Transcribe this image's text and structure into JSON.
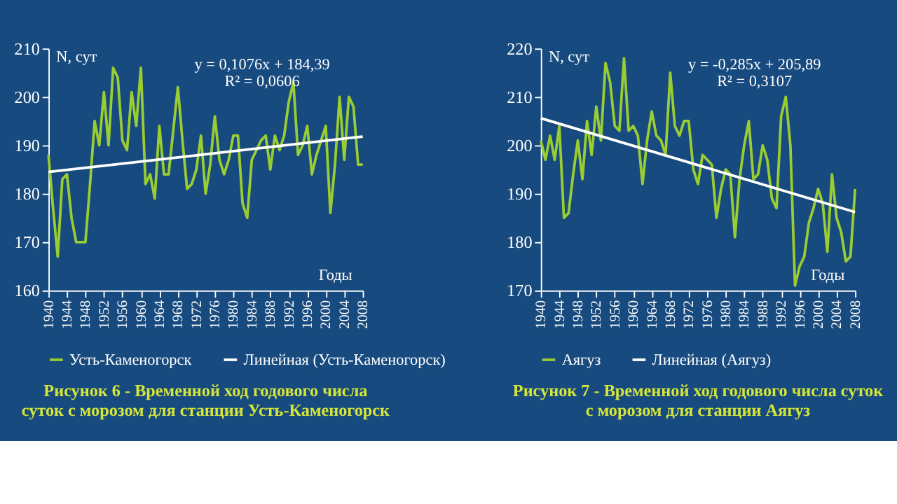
{
  "chart_data": [
    {
      "type": "line",
      "title": "Рисунок 6 -   Временной ход годового числа суток с морозом для станции Усть-Каменогорск",
      "xlabel": "Годы",
      "ylabel": "N, сут",
      "annotations": [
        "y = 0,1076x + 184,39",
        "R² = 0,0606"
      ],
      "xlim": [
        1940,
        2008
      ],
      "xticks": [
        1940,
        1944,
        1948,
        1952,
        1956,
        1960,
        1964,
        1968,
        1972,
        1976,
        1980,
        1984,
        1988,
        1992,
        1996,
        2000,
        2004,
        2008
      ],
      "ylim": [
        160,
        210
      ],
      "yticks": [
        160,
        170,
        180,
        190,
        200,
        210
      ],
      "grid": false,
      "legend": "bottom",
      "marker": "none",
      "series": [
        {
          "name": "Усть-Каменогорск",
          "color": "#9acd32",
          "x": [
            1940,
            1941,
            1942,
            1943,
            1944,
            1945,
            1946,
            1947,
            1948,
            1949,
            1950,
            1951,
            1952,
            1953,
            1954,
            1955,
            1956,
            1957,
            1958,
            1959,
            1960,
            1961,
            1962,
            1963,
            1964,
            1965,
            1966,
            1967,
            1968,
            1969,
            1970,
            1971,
            1972,
            1973,
            1974,
            1975,
            1976,
            1977,
            1978,
            1979,
            1980,
            1981,
            1982,
            1983,
            1984,
            1985,
            1986,
            1987,
            1988,
            1989,
            1990,
            1991,
            1992,
            1993,
            1994,
            1995,
            1996,
            1997,
            1998,
            1999,
            2000,
            2001,
            2002,
            2003,
            2004,
            2005,
            2006,
            2007,
            2008
          ],
          "values": [
            188,
            177,
            167,
            183,
            184,
            175,
            170,
            170,
            170,
            182,
            195,
            190,
            201,
            190,
            206,
            204,
            191,
            189,
            201,
            194,
            206,
            182,
            184,
            179,
            194,
            184,
            184,
            193,
            202,
            191,
            181,
            182,
            185,
            192,
            180,
            186,
            196,
            187,
            184,
            187,
            192,
            192,
            178,
            175,
            187,
            189,
            191,
            192,
            185,
            192,
            189,
            192,
            199,
            203,
            188,
            190,
            194,
            184,
            188,
            191,
            194,
            176,
            186,
            200,
            187,
            200,
            198,
            186,
            186
          ]
        },
        {
          "name": "Линейная (Усть-Каменогорск)",
          "type": "line",
          "color": "#ffffff",
          "x": [
            1940,
            2008
          ],
          "values": [
            184.5,
            191.8
          ]
        }
      ]
    },
    {
      "type": "line",
      "title": "Рисунок 7 - Временной ход годового числа суток с морозом для станции Аягуз",
      "xlabel": "Годы",
      "ylabel": "N, сут",
      "annotations": [
        "y = -0,285x + 205,89",
        "R² = 0,3107"
      ],
      "xlim": [
        1940,
        2008
      ],
      "xticks": [
        1940,
        1944,
        1948,
        1952,
        1956,
        1960,
        1964,
        1968,
        1972,
        1976,
        1980,
        1984,
        1988,
        1992,
        1996,
        2000,
        2004,
        2008
      ],
      "ylim": [
        170,
        220
      ],
      "yticks": [
        170,
        180,
        190,
        200,
        210,
        220
      ],
      "grid": false,
      "legend": "bottom",
      "marker": "none",
      "series": [
        {
          "name": "Аягуз",
          "color": "#9acd32",
          "x": [
            1940,
            1941,
            1942,
            1943,
            1944,
            1945,
            1946,
            1947,
            1948,
            1949,
            1950,
            1951,
            1952,
            1953,
            1954,
            1955,
            1956,
            1957,
            1958,
            1959,
            1960,
            1961,
            1962,
            1963,
            1964,
            1965,
            1966,
            1967,
            1968,
            1969,
            1970,
            1971,
            1972,
            1973,
            1974,
            1975,
            1976,
            1977,
            1978,
            1979,
            1980,
            1981,
            1982,
            1983,
            1984,
            1985,
            1986,
            1987,
            1988,
            1989,
            1990,
            1991,
            1992,
            1993,
            1994,
            1995,
            1996,
            1997,
            1998,
            1999,
            2000,
            2001,
            2002,
            2003,
            2004,
            2005,
            2006,
            2007,
            2008
          ],
          "values": [
            201,
            197,
            202,
            197,
            204,
            185,
            186,
            194,
            201,
            193,
            205,
            198,
            208,
            201,
            217,
            213,
            204,
            203,
            218,
            203,
            204,
            202,
            192,
            201,
            207,
            202,
            201,
            198,
            215,
            204,
            202,
            205,
            205,
            195,
            192,
            198,
            197,
            196,
            185,
            191,
            195,
            194,
            181,
            193,
            200,
            205,
            193,
            194,
            200,
            197,
            189,
            187,
            206,
            210,
            200,
            171,
            175,
            177,
            184,
            187,
            191,
            188,
            178,
            194,
            185,
            182,
            176,
            177,
            191
          ]
        },
        {
          "name": "Линейная (Аягуз)",
          "type": "line",
          "color": "#ffffff",
          "x": [
            1940,
            2008
          ],
          "values": [
            205.6,
            186.2
          ]
        }
      ]
    }
  ]
}
